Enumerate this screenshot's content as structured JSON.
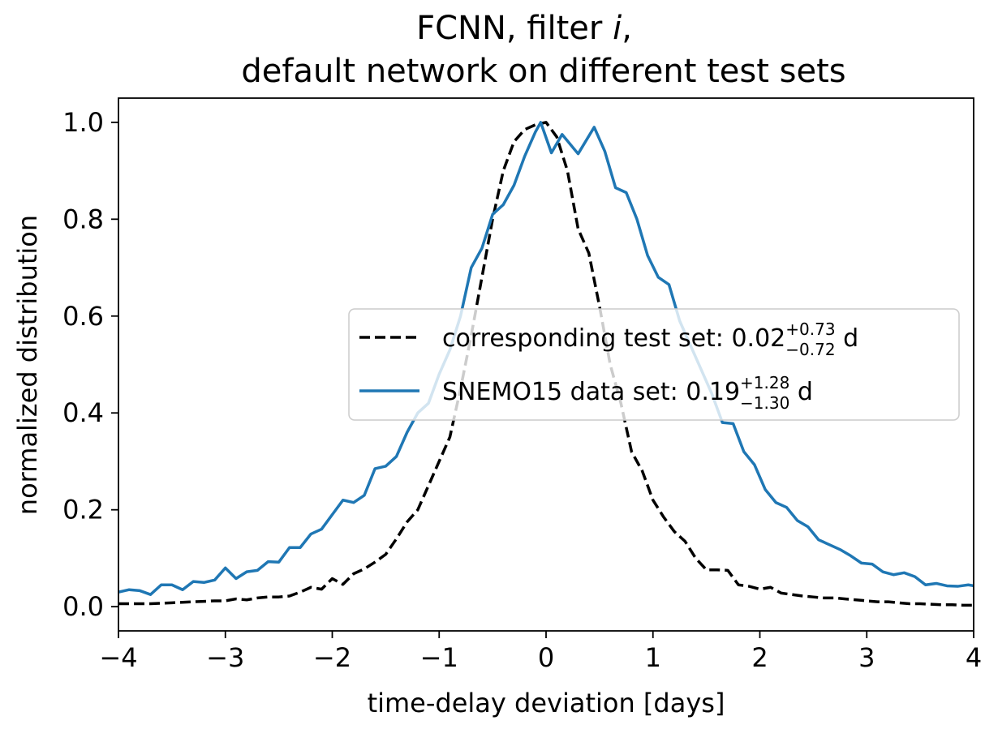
{
  "chart_data": {
    "type": "line",
    "title_line1": "FCNN, filter ",
    "title_italic": "i",
    "title_line1_end": ",",
    "title_line2": "default network on different test sets",
    "xlabel": "time-delay deviation [days]",
    "ylabel": "normalized distribution",
    "xlim": [
      -4,
      4
    ],
    "ylim": [
      -0.05,
      1.05
    ],
    "x_ticks": [
      -4,
      -3,
      -2,
      -1,
      0,
      1,
      2,
      3,
      4
    ],
    "x_tick_labels": [
      "−4",
      "−3",
      "−2",
      "−1",
      "0",
      "1",
      "2",
      "3",
      "4"
    ],
    "y_ticks": [
      0.0,
      0.2,
      0.4,
      0.6,
      0.8,
      1.0
    ],
    "y_tick_labels": [
      "0.0",
      "0.2",
      "0.4",
      "0.6",
      "0.8",
      "1.0"
    ],
    "grid": false,
    "legend_position": "center-right",
    "series": [
      {
        "name_prefix": "corresponding test set: 0.02",
        "name_sup": "+0.73",
        "name_sub": "−0.72",
        "name_suffix": " d",
        "color": "#000000",
        "dash": "dashed",
        "x": [
          -4.0,
          -3.9,
          -3.8,
          -3.7,
          -3.6,
          -3.5,
          -3.4,
          -3.3,
          -3.2,
          -3.1,
          -3.0,
          -2.9,
          -2.8,
          -2.7,
          -2.6,
          -2.5,
          -2.4,
          -2.3,
          -2.2,
          -2.1,
          -2.0,
          -1.9,
          -1.8,
          -1.7,
          -1.6,
          -1.5,
          -1.4,
          -1.3,
          -1.2,
          -1.1,
          -1.0,
          -0.9,
          -0.8,
          -0.7,
          -0.6,
          -0.5,
          -0.4,
          -0.3,
          -0.2,
          -0.1,
          0.0,
          0.1,
          0.2,
          0.3,
          0.4,
          0.5,
          0.6,
          0.7,
          0.8,
          0.9,
          1.0,
          1.1,
          1.2,
          1.3,
          1.4,
          1.5,
          1.6,
          1.7,
          1.8,
          1.9,
          2.0,
          2.1,
          2.2,
          2.3,
          2.4,
          2.5,
          2.6,
          2.7,
          2.8,
          2.9,
          3.0,
          3.1,
          3.2,
          3.3,
          3.4,
          3.5,
          3.6,
          3.7,
          3.8,
          3.9,
          4.0
        ],
        "y": [
          0.006,
          0.006,
          0.006,
          0.006,
          0.007,
          0.008,
          0.009,
          0.01,
          0.011,
          0.012,
          0.012,
          0.016,
          0.014,
          0.018,
          0.02,
          0.02,
          0.022,
          0.03,
          0.04,
          0.036,
          0.058,
          0.046,
          0.068,
          0.078,
          0.092,
          0.108,
          0.14,
          0.175,
          0.2,
          0.25,
          0.3,
          0.35,
          0.45,
          0.56,
          0.68,
          0.8,
          0.9,
          0.96,
          0.985,
          0.995,
          1.0,
          0.97,
          0.9,
          0.78,
          0.73,
          0.62,
          0.5,
          0.42,
          0.32,
          0.28,
          0.22,
          0.185,
          0.155,
          0.135,
          0.1,
          0.076,
          0.076,
          0.075,
          0.045,
          0.042,
          0.036,
          0.04,
          0.028,
          0.025,
          0.022,
          0.02,
          0.018,
          0.018,
          0.016,
          0.014,
          0.012,
          0.01,
          0.01,
          0.008,
          0.006,
          0.006,
          0.005,
          0.004,
          0.004,
          0.003,
          0.003
        ]
      },
      {
        "name_prefix": "SNEMO15 data set: 0.19",
        "name_sup": "+1.28",
        "name_sub": "−1.30",
        "name_suffix": " d",
        "color": "#1f77b4",
        "dash": "solid",
        "x": [
          -4.0,
          -3.9,
          -3.8,
          -3.7,
          -3.6,
          -3.5,
          -3.4,
          -3.3,
          -3.2,
          -3.1,
          -3.0,
          -2.9,
          -2.8,
          -2.7,
          -2.6,
          -2.5,
          -2.4,
          -2.3,
          -2.2,
          -2.1,
          -2.0,
          -1.9,
          -1.8,
          -1.7,
          -1.6,
          -1.5,
          -1.4,
          -1.3,
          -1.2,
          -1.1,
          -1.0,
          -0.9,
          -0.8,
          -0.7,
          -0.6,
          -0.5,
          -0.4,
          -0.3,
          -0.2,
          -0.1,
          -0.05,
          0.05,
          0.15,
          0.3,
          0.45,
          0.55,
          0.65,
          0.75,
          0.85,
          0.95,
          1.05,
          1.15,
          1.25,
          1.35,
          1.45,
          1.55,
          1.65,
          1.75,
          1.85,
          1.95,
          2.05,
          2.15,
          2.25,
          2.35,
          2.45,
          2.55,
          2.65,
          2.75,
          2.85,
          2.95,
          3.05,
          3.15,
          3.25,
          3.35,
          3.45,
          3.55,
          3.65,
          3.75,
          3.85,
          3.95,
          4.0
        ],
        "y": [
          0.03,
          0.035,
          0.033,
          0.025,
          0.045,
          0.045,
          0.035,
          0.052,
          0.05,
          0.055,
          0.08,
          0.058,
          0.072,
          0.075,
          0.093,
          0.092,
          0.122,
          0.122,
          0.15,
          0.16,
          0.19,
          0.22,
          0.215,
          0.23,
          0.285,
          0.29,
          0.31,
          0.36,
          0.4,
          0.42,
          0.48,
          0.53,
          0.6,
          0.7,
          0.74,
          0.81,
          0.83,
          0.87,
          0.93,
          0.98,
          1.0,
          0.937,
          0.975,
          0.935,
          0.99,
          0.94,
          0.865,
          0.855,
          0.8,
          0.725,
          0.68,
          0.665,
          0.59,
          0.54,
          0.49,
          0.44,
          0.38,
          0.378,
          0.32,
          0.293,
          0.242,
          0.215,
          0.205,
          0.178,
          0.165,
          0.138,
          0.128,
          0.118,
          0.105,
          0.09,
          0.088,
          0.072,
          0.066,
          0.07,
          0.062,
          0.045,
          0.048,
          0.043,
          0.042,
          0.045,
          0.043
        ]
      }
    ]
  }
}
